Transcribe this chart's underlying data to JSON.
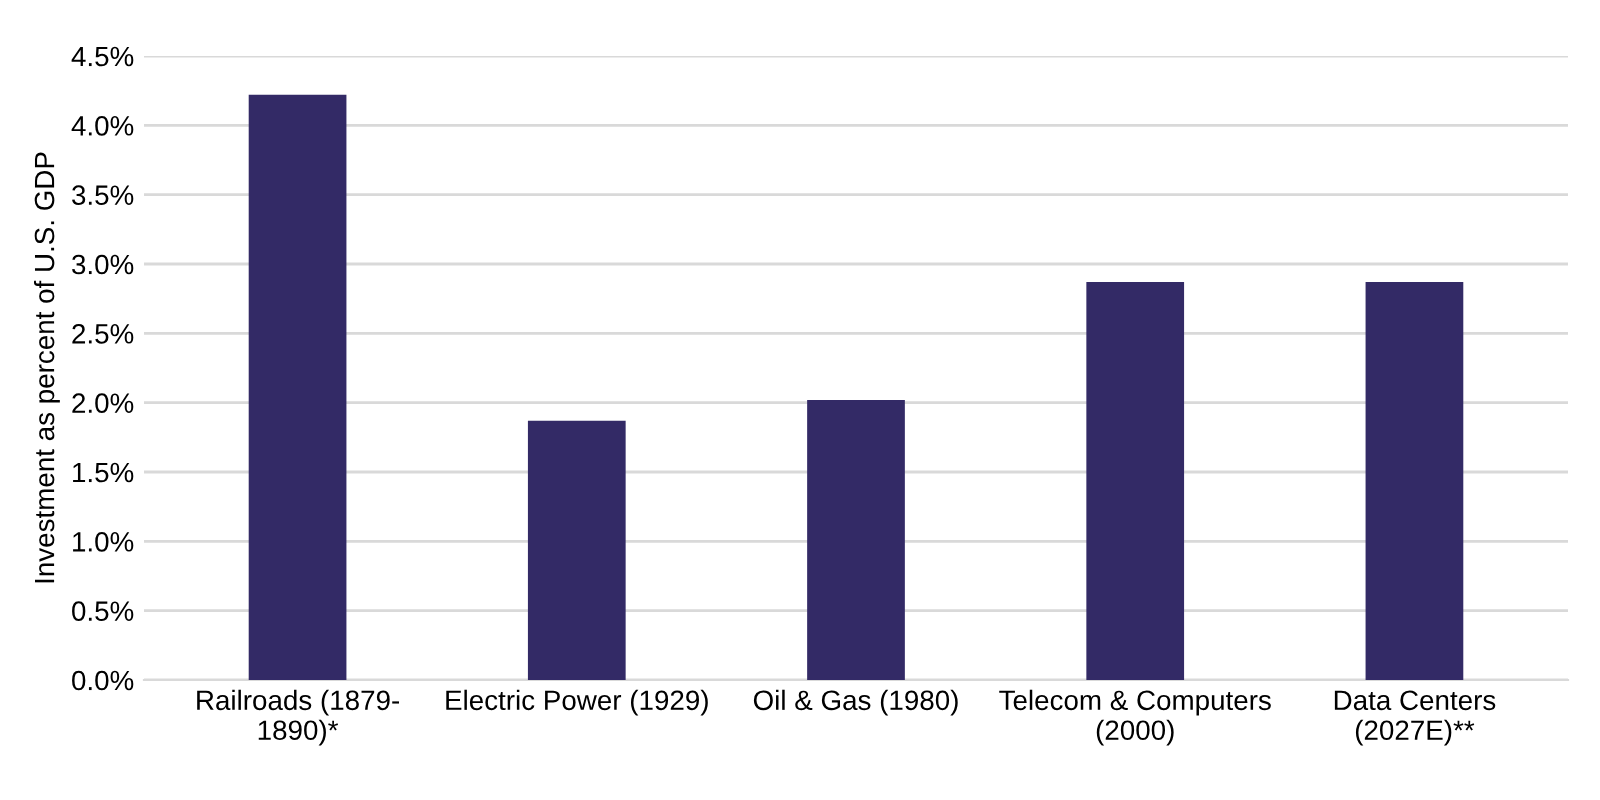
{
  "chart_data": {
    "type": "bar",
    "ylabel": "Investment as percent of U.S. GDP",
    "categories": [
      "Railroads (1879-\n1890)*",
      "Electric Power (1929)",
      "Oil & Gas (1980)",
      "Telecom & Computers\n(2000)",
      "Data Centers\n(2027E)**"
    ],
    "values": [
      4.22,
      1.87,
      2.02,
      2.87,
      2.87
    ],
    "color": "#332a66",
    "ylim": [
      0,
      4.5
    ],
    "yticks": [
      {
        "value": 0,
        "label": "0.0%"
      },
      {
        "value": 0.5,
        "label": "0.5%"
      },
      {
        "value": 1,
        "label": "1.0%"
      },
      {
        "value": 1.5,
        "label": "1.5%"
      },
      {
        "value": 2,
        "label": "2.0%"
      },
      {
        "value": 2.5,
        "label": "2.5%"
      },
      {
        "value": 3,
        "label": "3.0%"
      },
      {
        "value": 3.5,
        "label": "3.5%"
      },
      {
        "value": 4,
        "label": "4.0%"
      },
      {
        "value": 4.5,
        "label": "4.5%"
      }
    ],
    "grid": "y"
  }
}
